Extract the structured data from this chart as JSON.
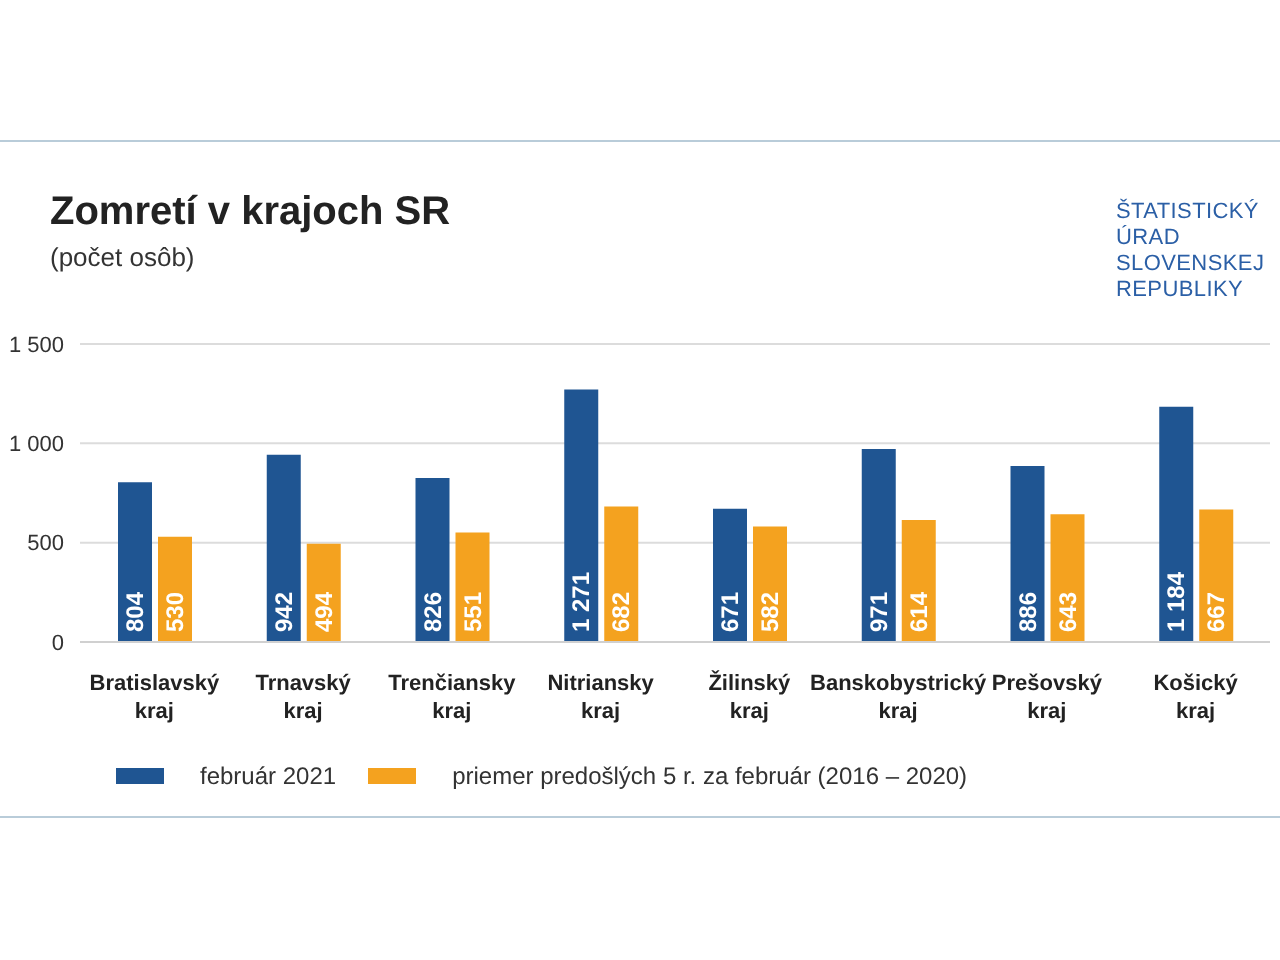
{
  "chart_data": {
    "type": "bar",
    "title": "Zomretí v krajoch SR",
    "subtitle": "(počet osôb)",
    "annotations": [
      "ŠTATISTICKÝ ÚRAD SLOVENSKEJ REPUBLIKY"
    ],
    "categories": [
      "Bratislavský kraj",
      "Trnavský kraj",
      "Trenčiansky kraj",
      "Nitriansky kraj",
      "Žilinský kraj",
      "Banskobystrický kraj",
      "Prešovský kraj",
      "Košický kraj"
    ],
    "series": [
      {
        "name": "február 2021",
        "color": "#1f5592",
        "values": [
          804,
          942,
          826,
          1271,
          671,
          971,
          886,
          1184
        ],
        "value_labels": [
          "804",
          "942",
          "826",
          "1 271",
          "671",
          "971",
          "886",
          "1 184"
        ]
      },
      {
        "name": "priemer predošlých 5 r. za február (2016 – 2020)",
        "color": "#f4a21f",
        "values": [
          530,
          494,
          551,
          682,
          582,
          614,
          643,
          667
        ],
        "value_labels": [
          "530",
          "494",
          "551",
          "682",
          "582",
          "614",
          "643",
          "667"
        ]
      }
    ],
    "ylim": [
      0,
      1500
    ],
    "yticks": [
      0,
      500,
      {
        "value": 1000,
        "label": "1 000"
      },
      {
        "value": 1500,
        "label": "1 500"
      }
    ],
    "grid": "y",
    "legend": "bottom"
  }
}
